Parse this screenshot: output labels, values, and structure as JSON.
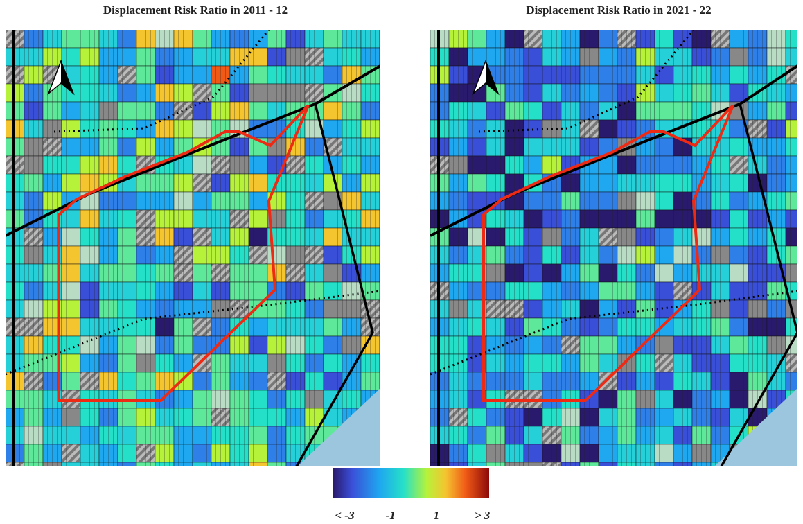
{
  "panels": [
    {
      "title": "Displacement Risk Ratio in 2011 - 12"
    },
    {
      "title": "Displacement Risk Ratio in 2021 - 22"
    }
  ],
  "colorbar": {
    "lim": [
      -3.5,
      3.3
    ],
    "ticks": [
      {
        "value": -3,
        "label": "< -3"
      },
      -1,
      1,
      {
        "value": 3,
        "label": "> 3"
      }
    ]
  }
}
